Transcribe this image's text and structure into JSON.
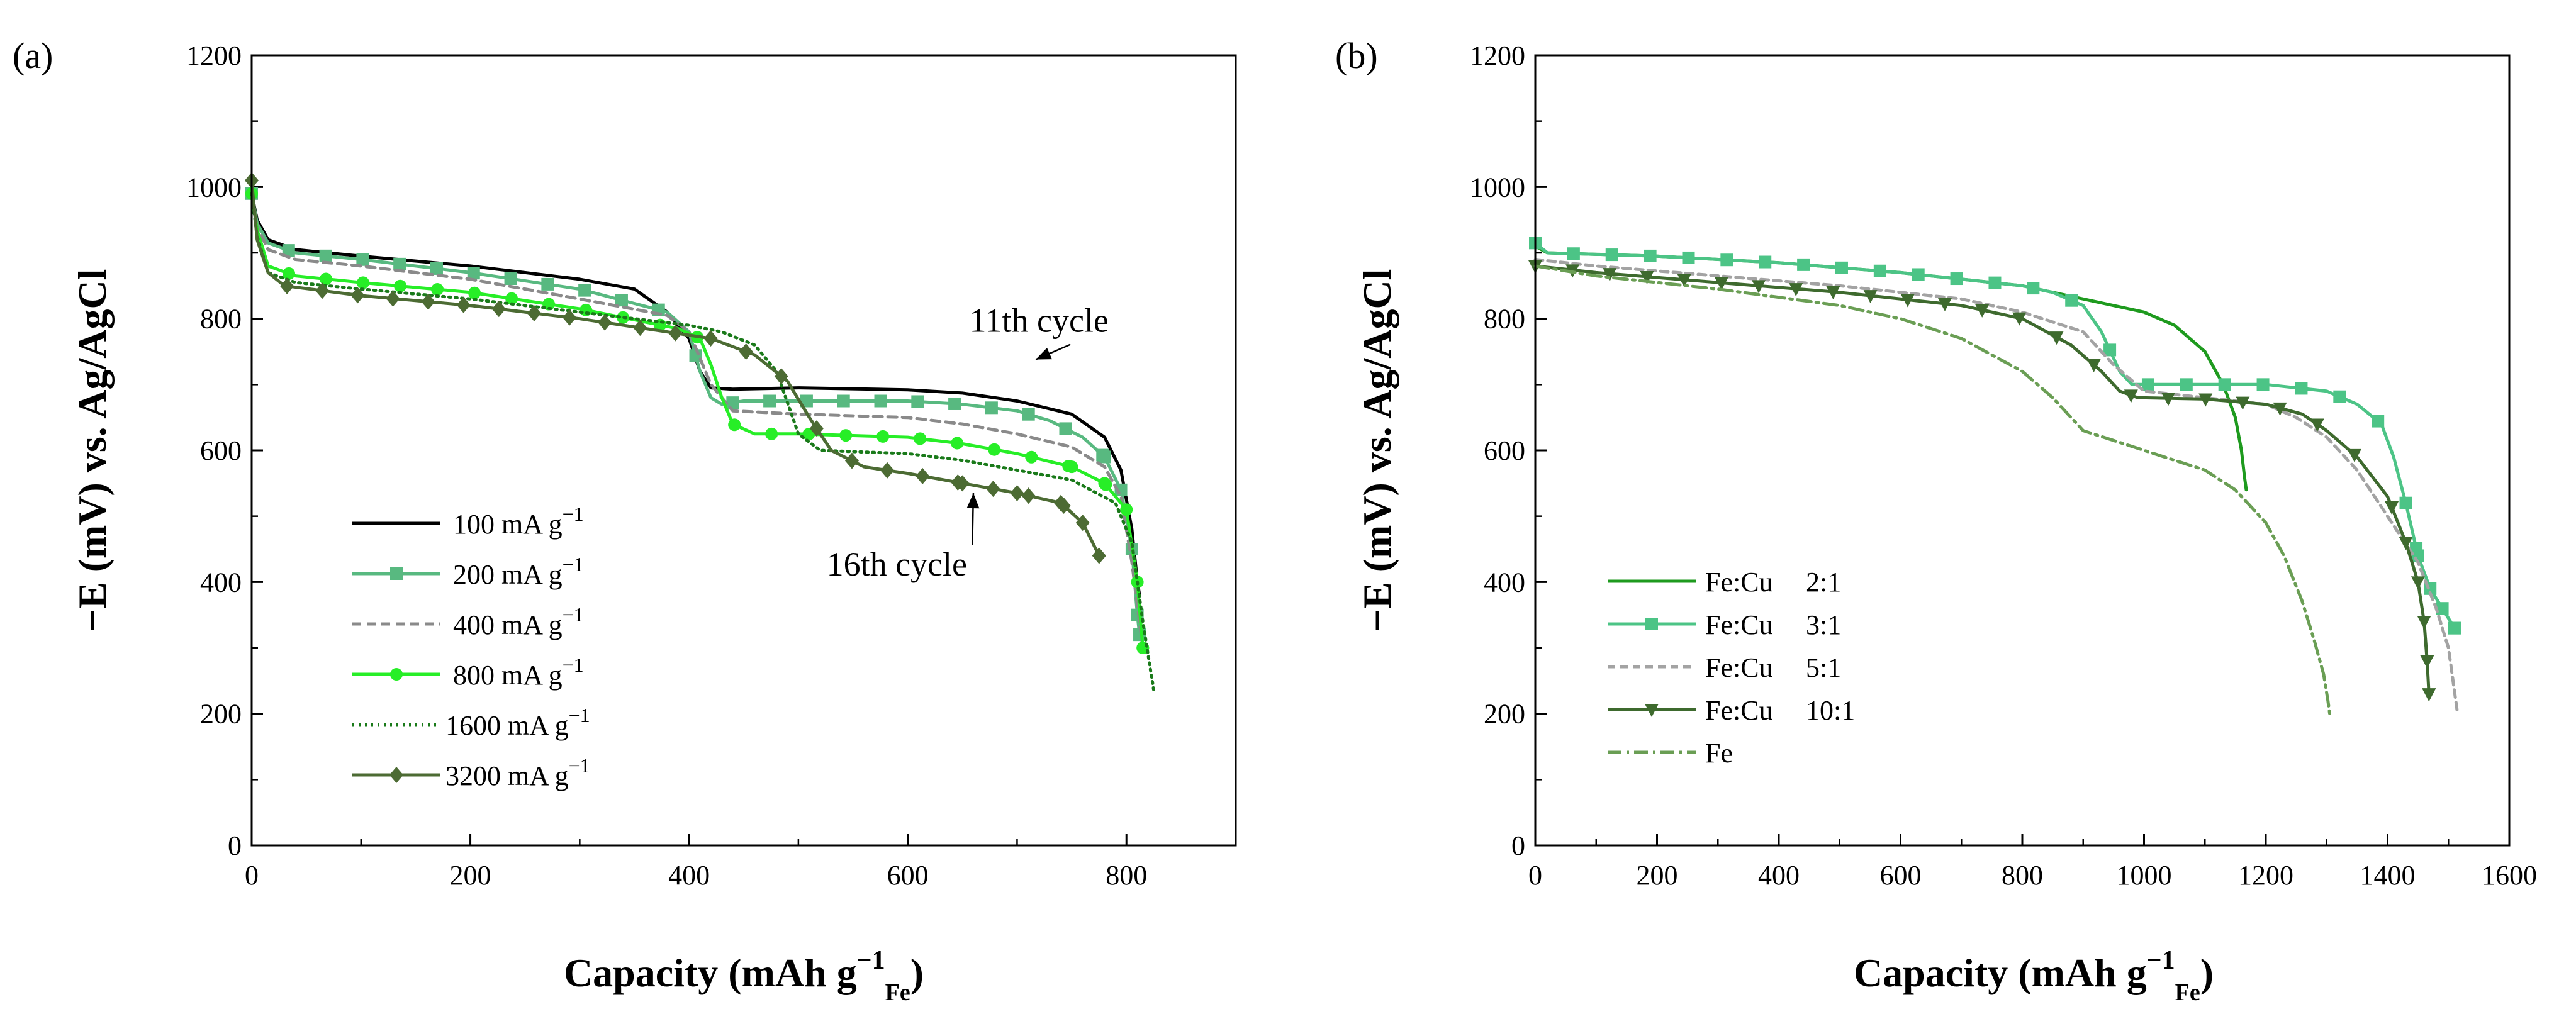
{
  "chart_data": [
    {
      "type": "line",
      "panel_label": "(a)",
      "xlabel_main": "Capacity (mAh g",
      "xlabel_sup": "−1",
      "xlabel_sub": "Fe",
      "xlabel_close": ")",
      "ylabel": "−E (mV) vs. Ag/AgCl",
      "xlim": [
        0,
        900
      ],
      "ylim": [
        0,
        1200
      ],
      "xticks": [
        0,
        200,
        400,
        600,
        800
      ],
      "yticks": [
        0,
        200,
        400,
        600,
        800,
        1000,
        1200
      ],
      "legend_position": "bottom-left",
      "annotations": [
        {
          "text": "11th cycle",
          "x": 720,
          "y": 780,
          "arrow_to": [
            717,
            738
          ]
        },
        {
          "text": "16th cycle",
          "x": 590,
          "y": 410,
          "arrow_to": [
            660,
            535
          ]
        }
      ],
      "series": [
        {
          "name": "100 mA g",
          "sup": "−1",
          "color": "#000000",
          "dash": "",
          "marker": "none",
          "x": [
            0,
            5,
            15,
            40,
            100,
            200,
            300,
            350,
            380,
            400,
            410,
            420,
            440,
            500,
            600,
            650,
            700,
            750,
            780,
            795,
            805,
            810,
            812
          ],
          "y": [
            990,
            950,
            920,
            905,
            895,
            880,
            860,
            845,
            810,
            770,
            720,
            695,
            693,
            695,
            692,
            687,
            675,
            655,
            620,
            570,
            480,
            400,
            380
          ]
        },
        {
          "name": "200 mA g",
          "sup": "−1",
          "color": "#58b980",
          "dash": "",
          "marker": "square",
          "x": [
            0,
            5,
            15,
            40,
            100,
            200,
            300,
            380,
            400,
            410,
            420,
            430,
            450,
            500,
            600,
            650,
            700,
            730,
            760,
            780,
            795,
            805,
            810,
            812
          ],
          "y": [
            990,
            945,
            915,
            900,
            890,
            870,
            845,
            810,
            780,
            720,
            680,
            670,
            675,
            675,
            675,
            670,
            660,
            645,
            620,
            590,
            540,
            450,
            350,
            320
          ]
        },
        {
          "name": "400 mA g",
          "sup": "−1",
          "color": "#8a8a8a",
          "dash": "14,9",
          "marker": "none",
          "x": [
            0,
            5,
            15,
            40,
            100,
            200,
            300,
            380,
            400,
            420,
            440,
            500,
            600,
            650,
            700,
            750,
            780,
            795,
            805,
            815
          ],
          "y": [
            990,
            940,
            905,
            890,
            880,
            860,
            830,
            805,
            780,
            700,
            660,
            655,
            650,
            640,
            625,
            605,
            575,
            530,
            430,
            300
          ]
        },
        {
          "name": "800 mA g",
          "sup": "−1",
          "color": "#27ee27",
          "dash": "",
          "marker": "circle",
          "x": [
            0,
            5,
            15,
            40,
            100,
            200,
            300,
            390,
            410,
            420,
            430,
            440,
            460,
            500,
            600,
            650,
            700,
            750,
            780,
            800,
            810,
            815
          ],
          "y": [
            990,
            935,
            880,
            865,
            855,
            840,
            815,
            785,
            770,
            730,
            680,
            640,
            625,
            625,
            620,
            610,
            595,
            575,
            550,
            510,
            400,
            300
          ]
        },
        {
          "name": "1600 mA g",
          "sup": "−1",
          "color": "#1a7a1a",
          "dash": "3,7",
          "marker": "none",
          "x": [
            0,
            5,
            15,
            40,
            100,
            200,
            300,
            400,
            430,
            460,
            480,
            500,
            520,
            600,
            650,
            700,
            750,
            790,
            805,
            815,
            825
          ],
          "y": [
            990,
            925,
            870,
            855,
            845,
            830,
            810,
            790,
            780,
            760,
            720,
            625,
            600,
            595,
            585,
            570,
            555,
            520,
            460,
            340,
            235
          ]
        },
        {
          "name": "3200 mA g",
          "sup": "−1",
          "color": "#4c6b33",
          "dash": "",
          "marker": "diamond",
          "x": [
            0,
            5,
            15,
            30,
            100,
            200,
            300,
            380,
            420,
            460,
            490,
            510,
            530,
            560,
            600,
            650,
            700,
            740,
            760,
            775
          ],
          "y": [
            1010,
            920,
            870,
            850,
            835,
            820,
            800,
            780,
            770,
            745,
            705,
            650,
            600,
            575,
            565,
            550,
            535,
            520,
            490,
            440
          ]
        }
      ]
    },
    {
      "type": "line",
      "panel_label": "(b)",
      "xlabel_main": "Capacity (mAh g",
      "xlabel_sup": "−1",
      "xlabel_sub": "Fe",
      "xlabel_close": ")",
      "ylabel": "−E (mV) vs. Ag/AgCl",
      "xlim": [
        0,
        1600
      ],
      "ylim": [
        0,
        1200
      ],
      "xticks": [
        0,
        200,
        400,
        600,
        800,
        1000,
        1200,
        1400,
        1600
      ],
      "yticks": [
        0,
        200,
        400,
        600,
        800,
        1000,
        1200
      ],
      "legend_position": "bottom-left",
      "series": [
        {
          "name": "Fe:Cu",
          "ratio": "2:1",
          "color": "#1e9a1e",
          "dash": "",
          "marker": "none",
          "x": [
            0,
            20,
            200,
            400,
            600,
            800,
            900,
            1000,
            1050,
            1100,
            1130,
            1150,
            1160,
            1165,
            1168
          ],
          "y": [
            910,
            900,
            895,
            885,
            870,
            850,
            830,
            810,
            790,
            750,
            700,
            650,
            600,
            560,
            540
          ]
        },
        {
          "name": "Fe:Cu",
          "ratio": "3:1",
          "color": "#4cc486",
          "dash": "",
          "marker": "square",
          "x": [
            0,
            20,
            200,
            400,
            600,
            800,
            850,
            900,
            930,
            960,
            980,
            1000,
            1100,
            1200,
            1300,
            1350,
            1390,
            1410,
            1430,
            1450,
            1470,
            1490,
            1510
          ],
          "y": [
            915,
            900,
            895,
            885,
            870,
            850,
            840,
            820,
            780,
            720,
            700,
            700,
            700,
            700,
            690,
            670,
            640,
            590,
            520,
            440,
            390,
            360,
            330
          ]
        },
        {
          "name": "Fe:Cu",
          "ratio": "5:1",
          "color": "#a3a3a3",
          "dash": "12,8",
          "marker": "none",
          "x": [
            0,
            100,
            300,
            500,
            700,
            800,
            900,
            950,
            1000,
            1100,
            1200,
            1250,
            1300,
            1350,
            1400,
            1450,
            1480,
            1500,
            1515
          ],
          "y": [
            890,
            880,
            865,
            850,
            830,
            810,
            780,
            730,
            690,
            680,
            670,
            650,
            620,
            570,
            500,
            430,
            360,
            300,
            200
          ]
        },
        {
          "name": "Fe:Cu",
          "ratio": "10:1",
          "color": "#3e6a2e",
          "dash": "",
          "marker": "triangle",
          "x": [
            0,
            100,
            300,
            500,
            700,
            800,
            880,
            930,
            960,
            990,
            1100,
            1200,
            1260,
            1300,
            1350,
            1400,
            1430,
            1450,
            1460,
            1465,
            1468
          ],
          "y": [
            880,
            870,
            855,
            840,
            820,
            800,
            760,
            720,
            690,
            680,
            678,
            670,
            655,
            630,
            590,
            530,
            460,
            400,
            340,
            280,
            230
          ]
        },
        {
          "name": "Fe",
          "ratio": "",
          "color": "#6a9e54",
          "dash": "22,8,4,8",
          "marker": "none",
          "x": [
            0,
            100,
            300,
            500,
            600,
            700,
            800,
            850,
            900,
            950,
            1000,
            1100,
            1150,
            1200,
            1230,
            1260,
            1280,
            1295,
            1302,
            1305
          ],
          "y": [
            880,
            865,
            845,
            820,
            800,
            770,
            720,
            680,
            630,
            615,
            600,
            570,
            540,
            490,
            440,
            370,
            310,
            260,
            220,
            200
          ]
        }
      ]
    }
  ]
}
